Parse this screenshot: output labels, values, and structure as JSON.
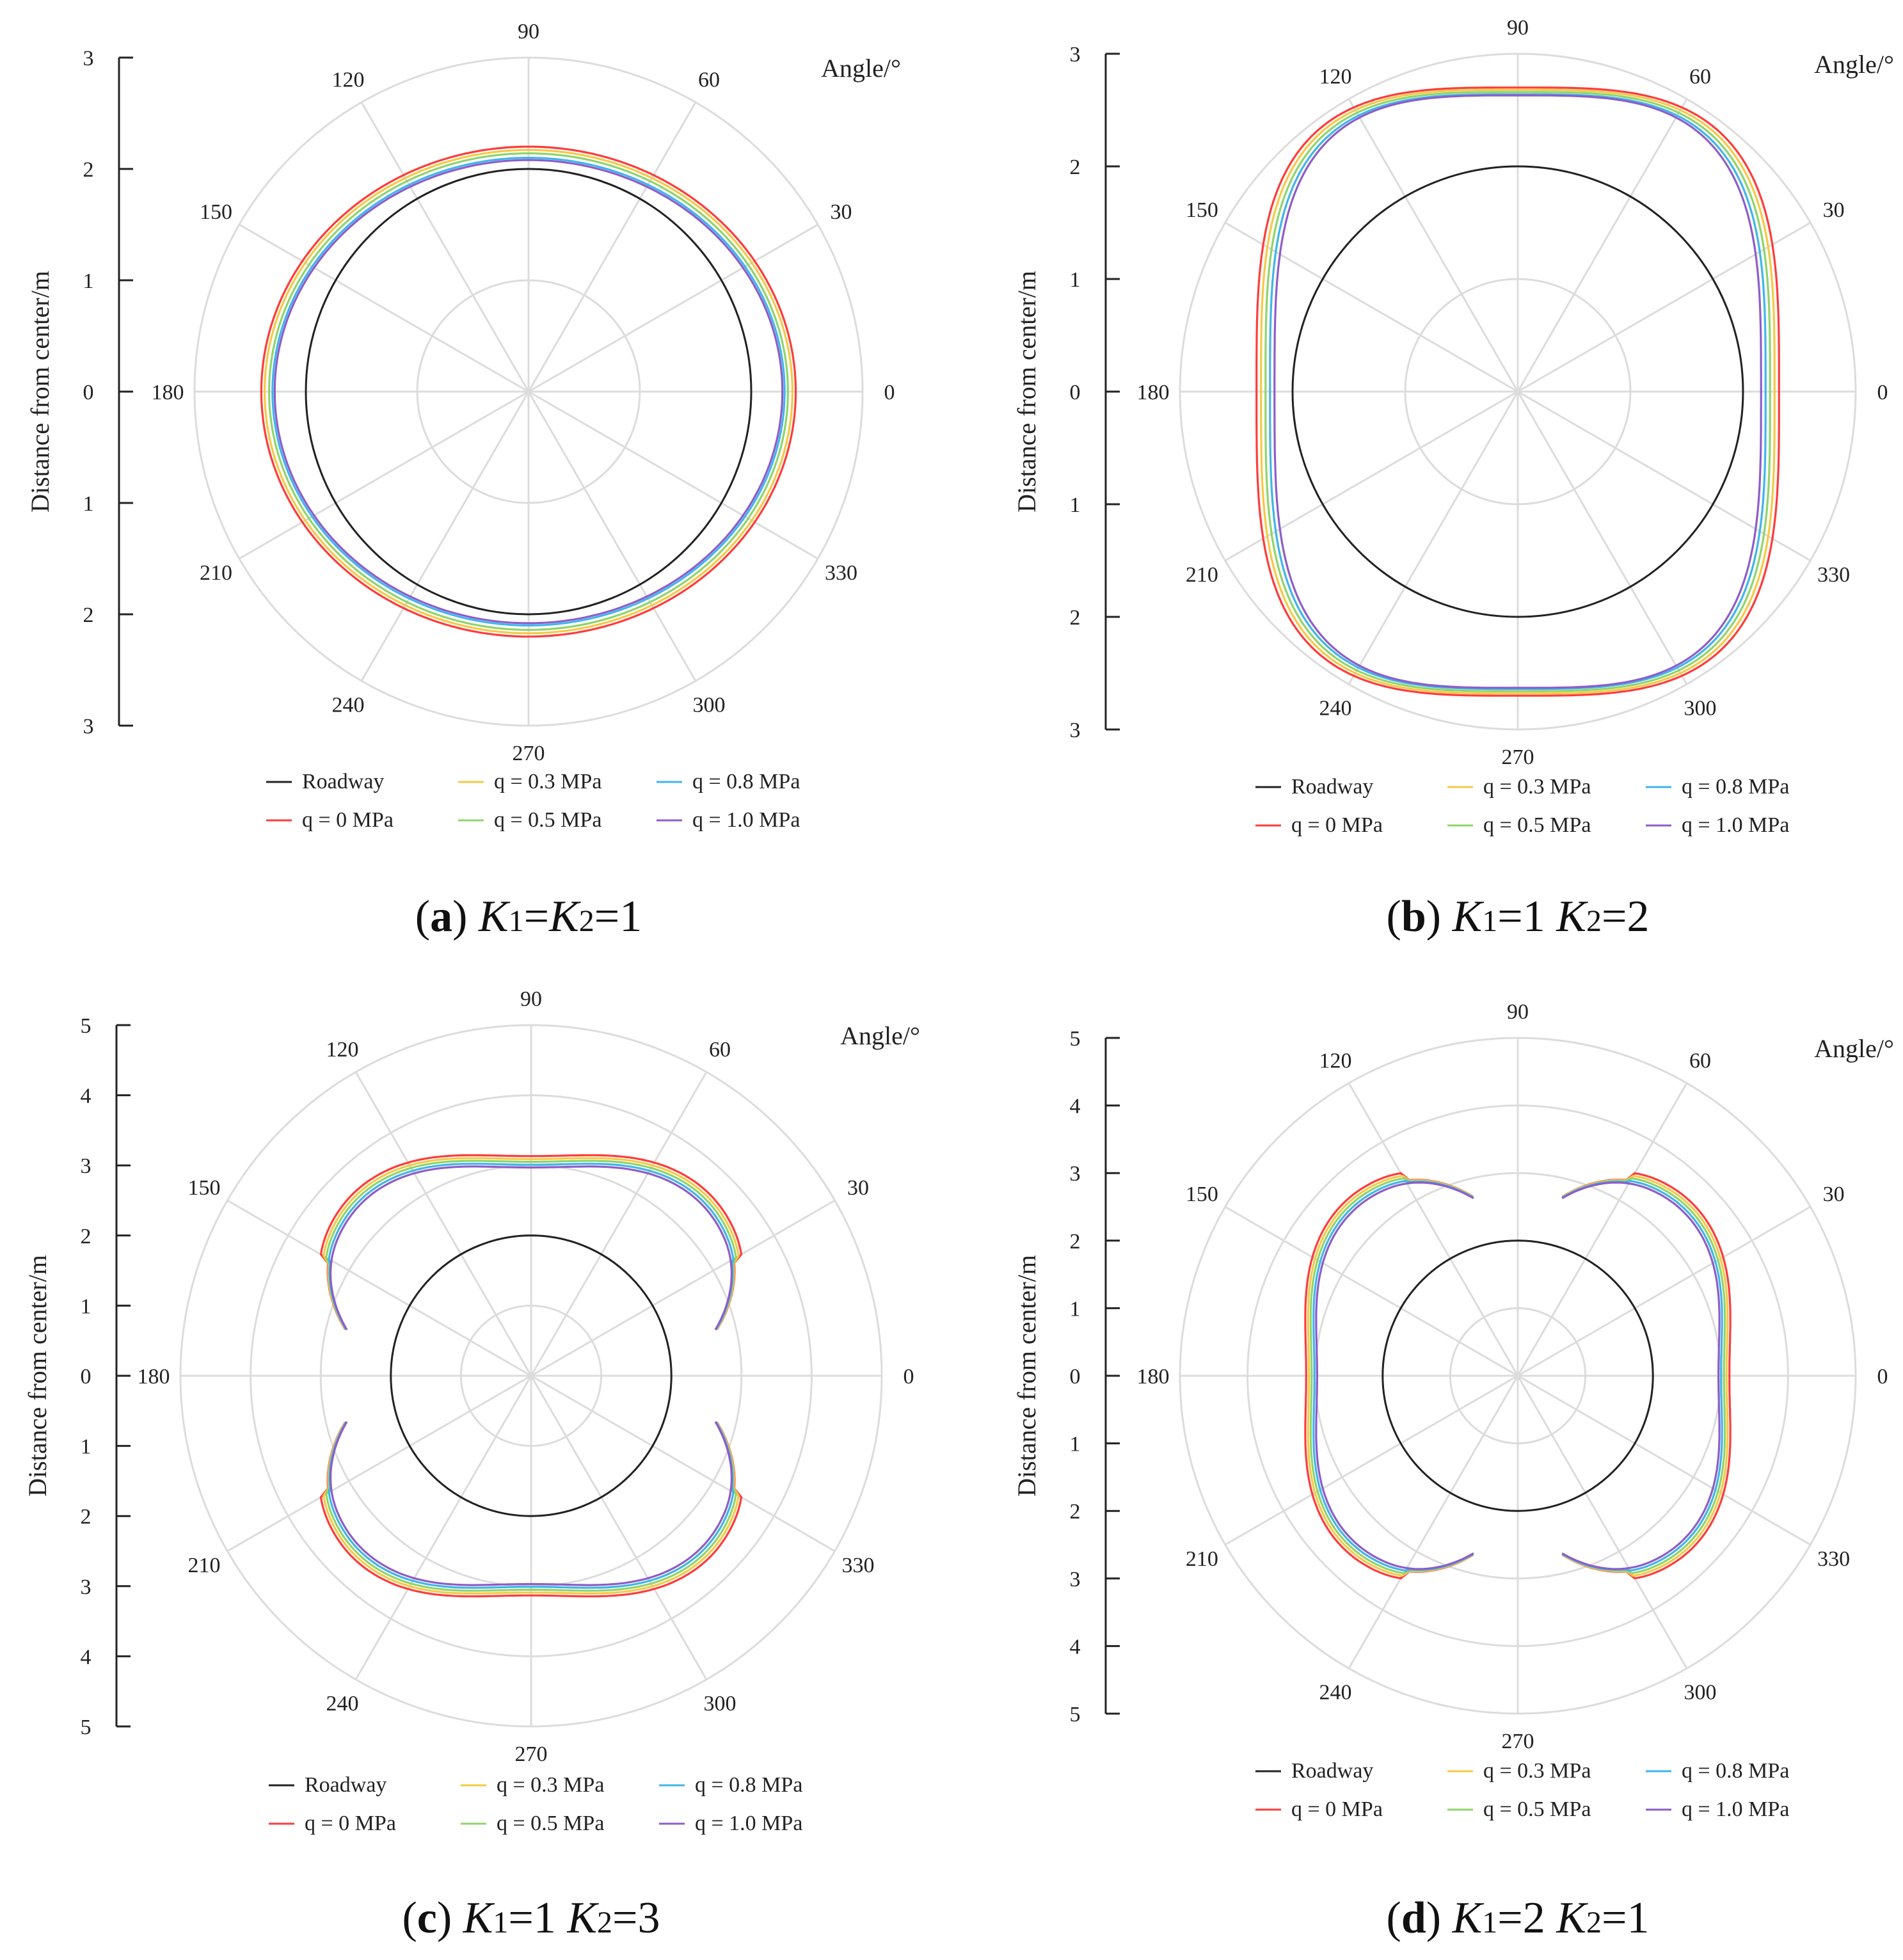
{
  "angle_axis_label": "Angle/°",
  "radius_axis_label": "Distance from center/m",
  "legend": [
    {
      "label": "Roadway",
      "color": "#222222"
    },
    {
      "label": "q = 0 MPa",
      "color": "#ff3b3b"
    },
    {
      "label": "q = 0.3 MPa",
      "color": "#f6c945"
    },
    {
      "label": "q = 0.5 MPa",
      "color": "#8fd46b"
    },
    {
      "label": "q = 0.8 MPa",
      "color": "#3fb5ea"
    },
    {
      "label": "q = 1.0 MPa",
      "color": "#8e5cc9"
    }
  ],
  "angle_ticks": [
    "0",
    "30",
    "60",
    "90",
    "120",
    "150",
    "180",
    "210",
    "240",
    "270",
    "300",
    "330"
  ],
  "chart_data": [
    {
      "type": "line",
      "subtype": "polar",
      "panel": "(a)",
      "caption": {
        "letter": "a",
        "k1": "1",
        "k2": "1",
        "form": "equal"
      },
      "radial_range": [
        0,
        3
      ],
      "radial_ticks_labels": [
        "3",
        "2",
        "1",
        "0",
        "1",
        "2",
        "3"
      ],
      "roadway_radius": 2.0,
      "series": [
        {
          "name": "q = 0 MPa",
          "type": "ellipse",
          "a": 2.4,
          "b": 2.2
        },
        {
          "name": "q = 0.3 MPa",
          "type": "ellipse",
          "a": 2.37,
          "b": 2.17
        },
        {
          "name": "q = 0.5 MPa",
          "type": "ellipse",
          "a": 2.33,
          "b": 2.14
        },
        {
          "name": "q = 0.8 MPa",
          "type": "ellipse",
          "a": 2.3,
          "b": 2.1
        },
        {
          "name": "q = 1.0 MPa",
          "type": "ellipse",
          "a": 2.28,
          "b": 2.08
        }
      ]
    },
    {
      "type": "line",
      "subtype": "polar",
      "panel": "(b)",
      "caption": {
        "letter": "b",
        "k1": "1",
        "k2": "2",
        "form": "pair"
      },
      "radial_range": [
        0,
        3
      ],
      "radial_ticks_labels": [
        "3",
        "2",
        "1",
        "0",
        "1",
        "2",
        "3"
      ],
      "roadway_radius": 2.0,
      "series": [
        {
          "name": "q = 0 MPa",
          "type": "superellipse",
          "a": 2.32,
          "b": 2.7,
          "n": 3.4
        },
        {
          "name": "q = 0.3 MPa",
          "type": "superellipse",
          "a": 2.28,
          "b": 2.68,
          "n": 3.4
        },
        {
          "name": "q = 0.5 MPa",
          "type": "superellipse",
          "a": 2.24,
          "b": 2.66,
          "n": 3.4
        },
        {
          "name": "q = 0.8 MPa",
          "type": "superellipse",
          "a": 2.2,
          "b": 2.64,
          "n": 3.4
        },
        {
          "name": "q = 1.0 MPa",
          "type": "superellipse",
          "a": 2.16,
          "b": 2.63,
          "n": 3.4
        }
      ]
    },
    {
      "type": "line",
      "subtype": "polar",
      "panel": "(c)",
      "caption": {
        "letter": "c",
        "k1": "1",
        "k2": "3",
        "form": "pair"
      },
      "radial_range": [
        0,
        5
      ],
      "radial_ticks_labels": [
        "5",
        "4",
        "3",
        "2",
        "1",
        "0",
        "1",
        "2",
        "3",
        "4",
        "5"
      ],
      "roadway_radius": 2.0,
      "series": [
        {
          "name": "q = 0 MPa",
          "type": "lobes",
          "orientation": "vertical",
          "scale": 1.03,
          "shift": 0.14
        },
        {
          "name": "q = 0.3 MPa",
          "type": "lobes",
          "orientation": "vertical",
          "scale": 1.02,
          "shift": 0.1
        },
        {
          "name": "q = 0.5 MPa",
          "type": "lobes",
          "orientation": "vertical",
          "scale": 1.01,
          "shift": 0.07
        },
        {
          "name": "q = 0.8 MPa",
          "type": "lobes",
          "orientation": "vertical",
          "scale": 1.0,
          "shift": 0.03
        },
        {
          "name": "q = 1.0 MPa",
          "type": "lobes",
          "orientation": "vertical",
          "scale": 0.99,
          "shift": 0.0
        }
      ]
    },
    {
      "type": "line",
      "subtype": "polar",
      "panel": "(d)",
      "caption": {
        "letter": "d",
        "k1": "2",
        "k2": "1",
        "form": "pair"
      },
      "radial_range": [
        0,
        5
      ],
      "radial_ticks_labels": [
        "5",
        "4",
        "3",
        "2",
        "1",
        "0",
        "1",
        "2",
        "3",
        "4",
        "5"
      ],
      "roadway_radius": 2.0,
      "series": [
        {
          "name": "q = 0 MPa",
          "type": "lobes",
          "orientation": "horizontal",
          "scale": 1.03,
          "shift": 0.14
        },
        {
          "name": "q = 0.3 MPa",
          "type": "lobes",
          "orientation": "horizontal",
          "scale": 1.02,
          "shift": 0.1
        },
        {
          "name": "q = 0.5 MPa",
          "type": "lobes",
          "orientation": "horizontal",
          "scale": 1.01,
          "shift": 0.07
        },
        {
          "name": "q = 0.8 MPa",
          "type": "lobes",
          "orientation": "horizontal",
          "scale": 1.0,
          "shift": 0.03
        },
        {
          "name": "q = 1.0 MPa",
          "type": "lobes",
          "orientation": "horizontal",
          "scale": 0.99,
          "shift": 0.0
        }
      ]
    }
  ]
}
